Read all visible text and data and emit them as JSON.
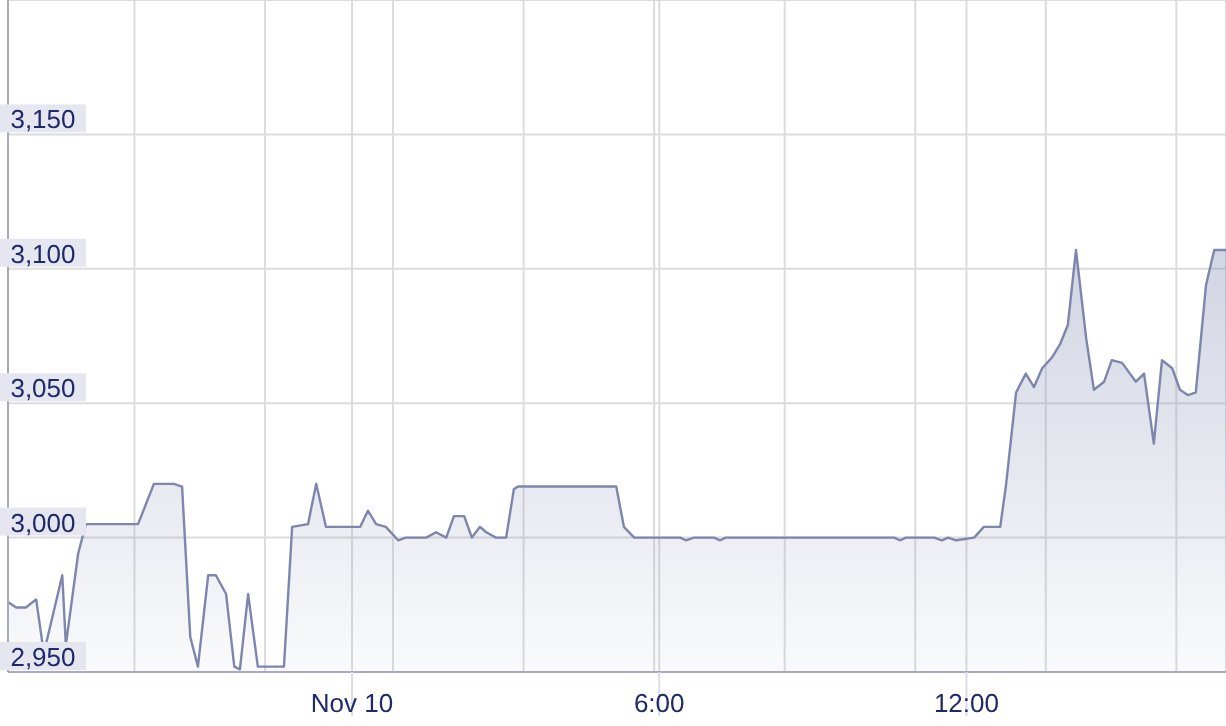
{
  "chart_data": {
    "type": "area",
    "x": [
      -6.72,
      -6.56,
      -6.37,
      -6.17,
      -6.02,
      -5.66,
      -5.59,
      -5.35,
      -5.2,
      -4.18,
      -3.87,
      -3.48,
      -3.32,
      -3.16,
      -3.01,
      -2.81,
      -2.66,
      -2.46,
      -2.3,
      -2.19,
      -2.03,
      -1.84,
      -1.33,
      -1.17,
      -0.86,
      -0.7,
      -0.51,
      0.16,
      0.31,
      0.47,
      0.66,
      0.9,
      1.05,
      1.13,
      1.45,
      1.64,
      1.84,
      1.99,
      2.19,
      2.34,
      2.5,
      2.62,
      2.81,
      3.01,
      3.16,
      3.24,
      5.16,
      5.31,
      5.51,
      6.41,
      6.52,
      6.68,
      7.07,
      7.19,
      7.3,
      9.14,
      10.59,
      10.7,
      10.82,
      11.37,
      11.52,
      11.64,
      11.8,
      12.15,
      12.34,
      12.66,
      12.77,
      12.97,
      13.16,
      13.32,
      13.48,
      13.67,
      13.83,
      13.98,
      14.14,
      14.34,
      14.49,
      14.69,
      14.84,
      15.04,
      15.31,
      15.47,
      15.66,
      15.82,
      16.02,
      16.17,
      16.33,
      16.48,
      16.68,
      16.84,
      17.07
    ],
    "series": [
      {
        "color": "#7e86ad",
        "values": [
          2976,
          2974,
          2974,
          2977,
          2957,
          2986,
          2960,
          2994,
          3005,
          3005,
          3020,
          3020,
          3019,
          2963,
          2952,
          2986,
          2986,
          2979,
          2952,
          2951,
          2979,
          2952,
          2952,
          3004,
          3005,
          3020,
          3004,
          3004,
          3010,
          3005,
          3004,
          2999,
          3000,
          3000,
          3000,
          3002,
          3000,
          3008,
          3008,
          3000,
          3004,
          3002,
          3000,
          3000,
          3018,
          3019,
          3019,
          3004,
          3000,
          3000,
          2999,
          3000,
          3000,
          2999,
          3000,
          3000,
          3000,
          2999,
          3000,
          3000,
          2999,
          3000,
          2999,
          3000,
          3004,
          3004,
          3019,
          3054,
          3061,
          3056,
          3063,
          3067,
          3072,
          3079,
          3107,
          3074,
          3055,
          3058,
          3066,
          3065,
          3058,
          3061,
          3035,
          3066,
          3063,
          3055,
          3053,
          3054,
          3094,
          3107,
          3107
        ]
      }
    ],
    "xlim": [
      -6.72,
      17.07
    ],
    "xticks": [
      {
        "value": -4.25,
        "label": null
      },
      {
        "value": -1.7,
        "label": null
      },
      {
        "value": 0,
        "label": "Nov 10"
      },
      {
        "value": 0.8,
        "label": null
      },
      {
        "value": 3.35,
        "label": null
      },
      {
        "value": 5.9,
        "label": null
      },
      {
        "value": 6,
        "label": "6:00"
      },
      {
        "value": 8.45,
        "label": null
      },
      {
        "value": 11,
        "label": null
      },
      {
        "value": 12,
        "label": "12:00"
      },
      {
        "value": 13.55,
        "label": null
      },
      {
        "value": 16.1,
        "label": null
      }
    ],
    "ylim": [
      2950,
      3200
    ],
    "yticks": [
      {
        "value": 2950,
        "label": "2,950"
      },
      {
        "value": 3000,
        "label": "3,000"
      },
      {
        "value": 3050,
        "label": "3,050"
      },
      {
        "value": 3100,
        "label": "3,100"
      },
      {
        "value": 3150,
        "label": "3,150"
      }
    ],
    "grid": true,
    "marker": "none"
  }
}
